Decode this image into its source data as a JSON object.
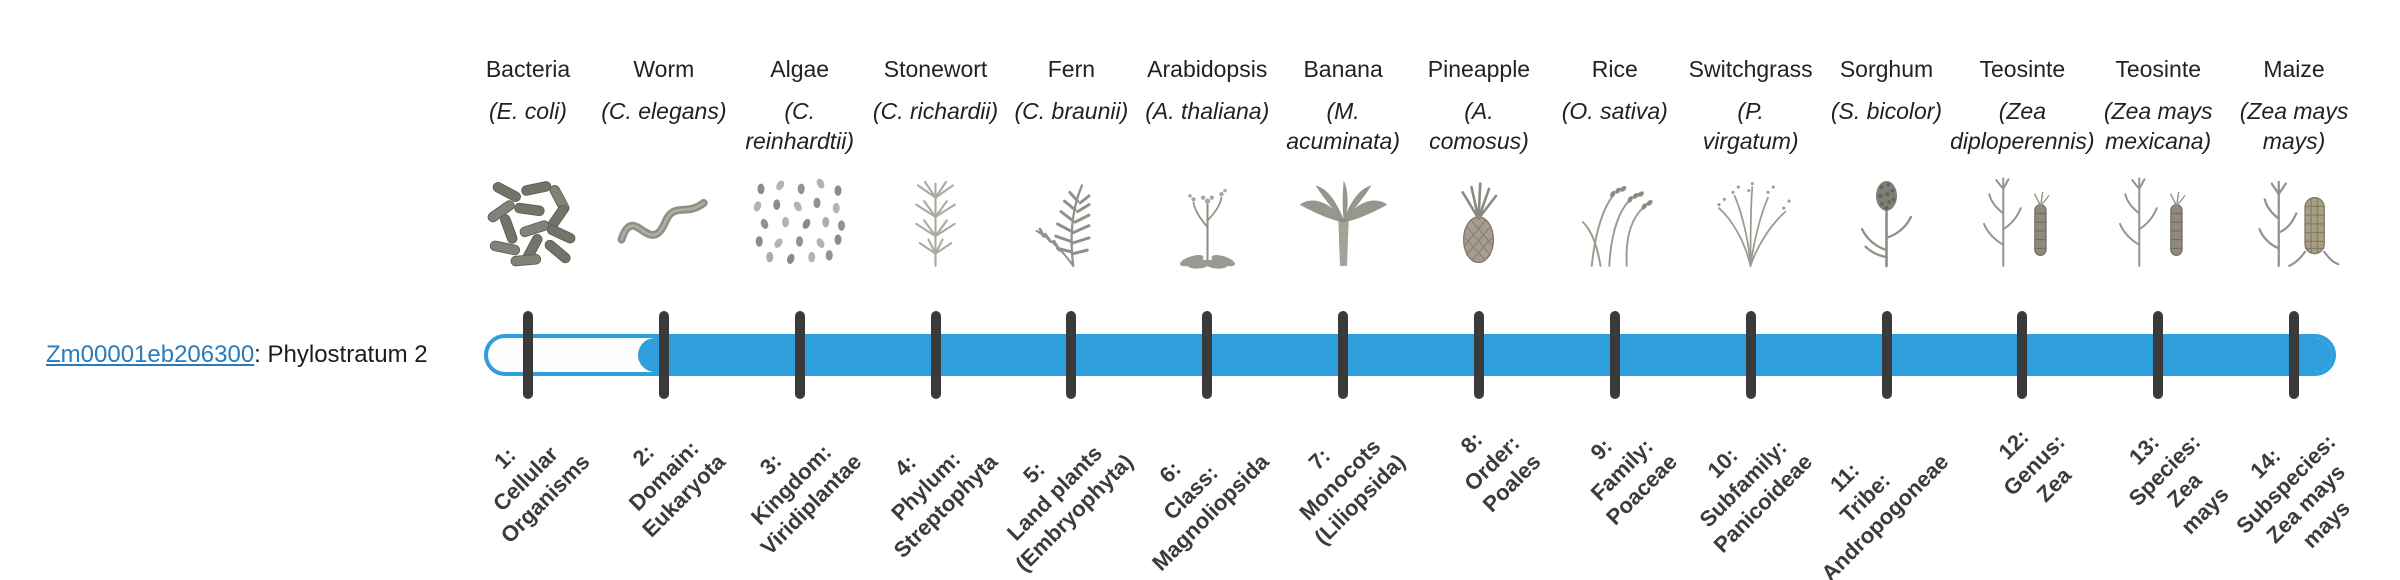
{
  "gene": {
    "id": "Zm00001eb206300",
    "suffix": ": Phylostratum 2",
    "phylostratum": 2
  },
  "colors": {
    "bar": "#2f9fdc",
    "tick": "#3a3a3a",
    "link": "#2b7bba",
    "text": "#222222",
    "label_text": "#3b3b3b"
  },
  "columns": [
    {
      "name": "Bacteria",
      "sci_lines": [
        "(E. coli)"
      ],
      "icon": "bacteria-icon",
      "label_lines": [
        "1:",
        "Cellular",
        "Organisms"
      ]
    },
    {
      "name": "Worm",
      "sci_lines": [
        "(C. elegans)"
      ],
      "icon": "worm-icon",
      "label_lines": [
        "2:",
        "Domain:",
        "Eukaryota"
      ]
    },
    {
      "name": "Algae",
      "sci_lines": [
        "(C.",
        "reinhardtii)"
      ],
      "icon": "algae-icon",
      "label_lines": [
        "3:",
        "Kingdom:",
        "Viridiplantae"
      ]
    },
    {
      "name": "Stonewort",
      "sci_lines": [
        "(C. richardii)"
      ],
      "icon": "stonewort-icon",
      "label_lines": [
        "4:",
        "Phylum:",
        "Streptophyta"
      ]
    },
    {
      "name": "Fern",
      "sci_lines": [
        "(C. braunii)"
      ],
      "icon": "fern-icon",
      "label_lines": [
        "5:",
        "Land plants",
        "(Embryophyta)"
      ]
    },
    {
      "name": "Arabidopsis",
      "sci_lines": [
        "(A. thaliana)"
      ],
      "icon": "arabidopsis-icon",
      "label_lines": [
        "6:",
        "Class:",
        "Magnoliopsida"
      ]
    },
    {
      "name": "Banana",
      "sci_lines": [
        "(M.",
        "acuminata)"
      ],
      "icon": "banana-icon",
      "label_lines": [
        "7:",
        "Monocots",
        "(Liliopsida)"
      ]
    },
    {
      "name": "Pineapple",
      "sci_lines": [
        "(A.",
        "comosus)"
      ],
      "icon": "pineapple-icon",
      "label_lines": [
        "8:",
        "Order:",
        "Poales"
      ]
    },
    {
      "name": "Rice",
      "sci_lines": [
        "(O. sativa)"
      ],
      "icon": "rice-icon",
      "label_lines": [
        "9:",
        "Family:",
        "Poaceae"
      ]
    },
    {
      "name": "Switchgrass",
      "sci_lines": [
        "(P.",
        "virgatum)"
      ],
      "icon": "switchgrass-icon",
      "label_lines": [
        "10:",
        "Subfamily:",
        "Panicoideae"
      ]
    },
    {
      "name": "Sorghum",
      "sci_lines": [
        "(S. bicolor)"
      ],
      "icon": "sorghum-icon",
      "label_lines": [
        "11:",
        "Tribe:",
        "Andropogoneae"
      ]
    },
    {
      "name": "Teosinte",
      "sci_lines": [
        "(Zea",
        "diploperennis)"
      ],
      "icon": "teosinte-icon",
      "label_lines": [
        "12:",
        "Genus:",
        "Zea"
      ]
    },
    {
      "name": "Teosinte",
      "sci_lines": [
        "(Zea mays",
        "mexicana)"
      ],
      "icon": "teosinte-icon",
      "label_lines": [
        "13:",
        "Species:",
        "Zea",
        "mays"
      ]
    },
    {
      "name": "Maize",
      "sci_lines": [
        "(Zea mays",
        "mays)"
      ],
      "icon": "maize-icon",
      "label_lines": [
        "14:",
        "Subspecies:",
        "Zea mays",
        "mays"
      ]
    }
  ],
  "chart_data": {
    "type": "bar",
    "orientation": "horizontal",
    "title": "Zm00001eb206300: Phylostratum 2",
    "scale": {
      "min": 1,
      "max": 14
    },
    "gene": {
      "id": "Zm00001eb206300",
      "phylostratum": 2,
      "bar_fill_range": [
        2,
        14
      ]
    },
    "categories": [
      "1: Cellular Organisms",
      "2: Domain: Eukaryota",
      "3: Kingdom: Viridiplantae",
      "4: Phylum: Streptophyta",
      "5: Land plants (Embryophyta)",
      "6: Class: Magnoliopsida",
      "7: Monocots (Liliopsida)",
      "8: Order: Poales",
      "9: Family: Poaceae",
      "10: Subfamily: Panicoideae",
      "11: Tribe: Andropogoneae",
      "12: Genus: Zea",
      "13: Species: Zea mays",
      "14: Subspecies: Zea mays mays"
    ],
    "category_organisms": [
      "Bacteria (E. coli)",
      "Worm (C. elegans)",
      "Algae (C. reinhardtii)",
      "Stonewort (C. richardii)",
      "Fern (C. braunii)",
      "Arabidopsis (A. thaliana)",
      "Banana (M. acuminata)",
      "Pineapple (A. comosus)",
      "Rice (O. sativa)",
      "Switchgrass (P. virgatum)",
      "Sorghum (S. bicolor)",
      "Teosinte (Zea diploperennis)",
      "Teosinte (Zea mays mexicana)",
      "Maize (Zea mays mays)"
    ],
    "legend": false,
    "grid": false
  }
}
